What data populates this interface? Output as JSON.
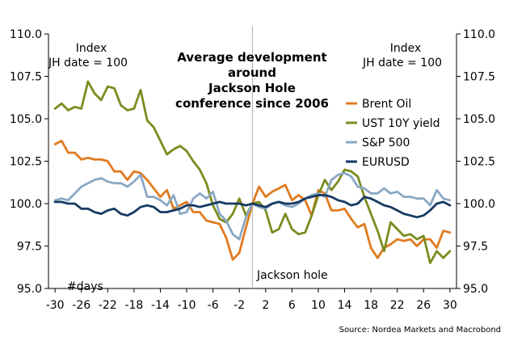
{
  "chart_data": {
    "type": "line",
    "title_lines": [
      "Average development",
      "around",
      "Jackson Hole",
      "conference since 2006"
    ],
    "left_axis_caption": [
      "Index",
      "JH date = 100"
    ],
    "right_axis_caption": [
      "Index",
      "JH date = 100"
    ],
    "x_axis_note": "#days",
    "event_label": "Jackson hole",
    "event_x": 0,
    "source": "Source: Nordea Markets and Macrobond",
    "xlim": [
      -31,
      31
    ],
    "ylim": [
      95.0,
      110.0
    ],
    "x_ticks": [
      -30,
      -26,
      -22,
      -18,
      -14,
      -10,
      -6,
      -2,
      2,
      6,
      10,
      14,
      18,
      22,
      26,
      30
    ],
    "x_tick_labels": [
      "-30",
      "-26",
      "-22",
      "-18",
      "-14",
      "-10",
      "-6",
      "-2",
      "2",
      "6",
      "10",
      "14",
      "18",
      "22",
      "26",
      "30"
    ],
    "y_ticks": [
      95.0,
      97.5,
      100.0,
      102.5,
      105.0,
      107.5,
      110.0
    ],
    "y_tick_labels": [
      "95.0",
      "97.5",
      "100.0",
      "102.5",
      "105.0",
      "107.5",
      "110.0"
    ],
    "legend_position": "right-middle",
    "grid": false,
    "x": [
      -30,
      -29,
      -28,
      -27,
      -26,
      -25,
      -24,
      -23,
      -22,
      -21,
      -20,
      -19,
      -18,
      -17,
      -16,
      -15,
      -14,
      -13,
      -12,
      -11,
      -10,
      -9,
      -8,
      -7,
      -6,
      -5,
      -4,
      -3,
      -2,
      -1,
      0,
      1,
      2,
      3,
      4,
      5,
      6,
      7,
      8,
      9,
      10,
      11,
      12,
      13,
      14,
      15,
      16,
      17,
      18,
      19,
      20,
      21,
      22,
      23,
      24,
      25,
      26,
      27,
      28,
      29,
      30
    ],
    "series": [
      {
        "name": "Brent Oil",
        "color": "#e07b20",
        "values": [
          103.5,
          103.7,
          103.0,
          103.0,
          102.6,
          102.7,
          102.6,
          102.6,
          102.5,
          101.9,
          101.9,
          101.4,
          101.9,
          101.8,
          101.4,
          100.9,
          100.4,
          100.8,
          99.7,
          99.9,
          100.1,
          99.5,
          99.5,
          99.0,
          98.9,
          98.8,
          98.0,
          96.7,
          97.1,
          98.6,
          100.0,
          101.0,
          100.4,
          100.7,
          100.9,
          101.1,
          100.2,
          100.5,
          100.2,
          99.3,
          100.8,
          100.6,
          99.6,
          99.6,
          99.7,
          99.1,
          98.6,
          98.8,
          97.4,
          96.8,
          97.4,
          97.6,
          97.9,
          97.8,
          97.9,
          97.5,
          97.9,
          97.9,
          97.4,
          98.4,
          98.3
        ]
      },
      {
        "name": "UST 10Y yield",
        "color": "#7b8c1e",
        "values": [
          105.6,
          105.9,
          105.5,
          105.7,
          105.6,
          107.2,
          106.5,
          106.1,
          106.9,
          106.8,
          105.8,
          105.5,
          105.6,
          106.7,
          104.9,
          104.5,
          103.7,
          102.9,
          103.2,
          103.4,
          103.1,
          102.5,
          102.0,
          101.2,
          99.9,
          99.1,
          98.9,
          99.4,
          100.3,
          99.3,
          100.0,
          100.1,
          99.6,
          98.3,
          98.5,
          99.4,
          98.5,
          98.2,
          98.3,
          99.3,
          100.5,
          101.4,
          100.8,
          101.3,
          102.0,
          101.9,
          101.6,
          100.4,
          99.4,
          98.4,
          97.2,
          98.9,
          98.5,
          98.1,
          98.2,
          97.9,
          98.1,
          96.5,
          97.2,
          96.8,
          97.2
        ]
      },
      {
        "name": "S&P 500",
        "color": "#8aa8c4",
        "values": [
          100.2,
          100.3,
          100.2,
          100.6,
          101.0,
          101.2,
          101.4,
          101.5,
          101.3,
          101.2,
          101.2,
          101.0,
          101.3,
          101.7,
          100.4,
          100.4,
          100.2,
          99.9,
          100.5,
          99.4,
          99.5,
          100.3,
          100.6,
          100.3,
          100.7,
          99.4,
          99.0,
          98.2,
          97.9,
          99.2,
          100.0,
          99.8,
          99.7,
          100.0,
          100.1,
          99.9,
          99.8,
          100.0,
          100.3,
          100.5,
          100.6,
          100.4,
          101.4,
          101.7,
          101.8,
          101.6,
          101.0,
          100.9,
          100.6,
          100.6,
          100.9,
          100.6,
          100.7,
          100.4,
          100.4,
          100.3,
          100.3,
          99.9,
          100.8,
          100.3,
          100.2
        ]
      },
      {
        "name": "EURUSD",
        "color": "#163a63",
        "values": [
          100.1,
          100.1,
          100.0,
          100.0,
          99.7,
          99.7,
          99.5,
          99.4,
          99.6,
          99.7,
          99.4,
          99.3,
          99.5,
          99.8,
          99.9,
          99.8,
          99.5,
          99.5,
          99.6,
          99.7,
          99.9,
          99.9,
          99.8,
          99.9,
          100.0,
          100.1,
          100.0,
          100.0,
          100.0,
          99.9,
          100.0,
          99.9,
          99.8,
          100.0,
          100.1,
          100.0,
          100.0,
          100.1,
          100.3,
          100.4,
          100.5,
          100.5,
          100.4,
          100.2,
          100.1,
          99.9,
          100.0,
          100.4,
          100.3,
          100.1,
          99.9,
          99.8,
          99.6,
          99.4,
          99.3,
          99.2,
          99.3,
          99.6,
          100.0,
          100.1,
          99.9
        ]
      }
    ]
  }
}
